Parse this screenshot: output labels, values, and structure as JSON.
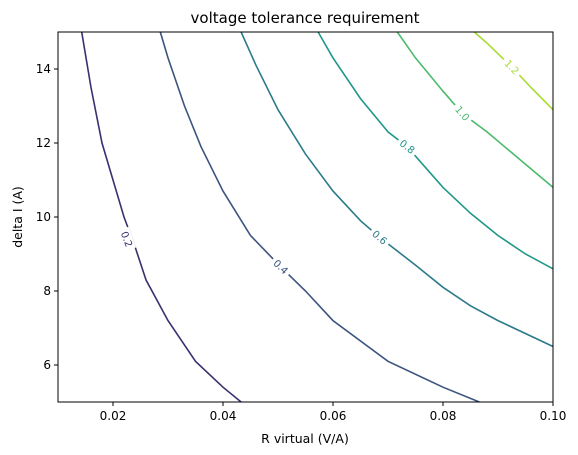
{
  "chart_data": {
    "type": "line",
    "title": "voltage tolerance requirement",
    "xlabel": "R virtual (V/A)",
    "ylabel": "delta I (A)",
    "xlim": [
      0.01,
      0.1
    ],
    "ylim": [
      5,
      15
    ],
    "xticks": [
      0.02,
      0.04,
      0.06,
      0.08,
      0.1
    ],
    "xtick_labels": [
      "0.02",
      "0.04",
      "0.06",
      "0.08",
      "0.10"
    ],
    "yticks": [
      6,
      8,
      10,
      12,
      14
    ],
    "ytick_labels": [
      "6",
      "8",
      "10",
      "12",
      "14"
    ],
    "grid": false,
    "series": [
      {
        "name": "0.2",
        "color": "#3b2f6f",
        "label": "0.2",
        "label_at": [
          0.0225,
          9.4
        ],
        "x": [
          0.0143,
          0.016,
          0.018,
          0.02,
          0.022,
          0.024,
          0.026,
          0.03,
          0.035,
          0.04,
          0.0433
        ],
        "y": [
          15.0,
          13.5,
          12.0,
          11.0,
          10.0,
          9.2,
          8.3,
          7.2,
          6.1,
          5.4,
          5.0
        ]
      },
      {
        "name": "0.4",
        "color": "#3c547f",
        "label": "0.4",
        "label_at": [
          0.0505,
          8.65
        ],
        "x": [
          0.0286,
          0.03,
          0.033,
          0.036,
          0.04,
          0.045,
          0.0505,
          0.055,
          0.06,
          0.07,
          0.08,
          0.0866
        ],
        "y": [
          15.0,
          14.3,
          13.0,
          11.9,
          10.7,
          9.5,
          8.65,
          8.0,
          7.2,
          6.1,
          5.4,
          5.0
        ]
      },
      {
        "name": "0.6",
        "color": "#2c7b8a",
        "label": "0.6",
        "label_at": [
          0.0685,
          9.45
        ],
        "x": [
          0.0433,
          0.046,
          0.05,
          0.055,
          0.06,
          0.065,
          0.0685,
          0.075,
          0.08,
          0.085,
          0.09,
          0.1
        ],
        "y": [
          15.0,
          14.1,
          12.9,
          11.7,
          10.7,
          9.9,
          9.45,
          8.7,
          8.1,
          7.6,
          7.2,
          6.5
        ]
      },
      {
        "name": "0.8",
        "color": "#209788",
        "label": "0.8",
        "label_at": [
          0.0735,
          11.9
        ],
        "x": [
          0.0573,
          0.06,
          0.065,
          0.07,
          0.0735,
          0.08,
          0.085,
          0.09,
          0.095,
          0.1
        ],
        "y": [
          15.0,
          14.3,
          13.2,
          12.3,
          11.9,
          10.8,
          10.1,
          9.5,
          9.0,
          8.6
        ]
      },
      {
        "name": "1.0",
        "color": "#4cbb6d",
        "label": "1.0",
        "label_at": [
          0.0835,
          12.8
        ],
        "x": [
          0.0717,
          0.075,
          0.08,
          0.0835,
          0.088,
          0.092,
          0.096,
          0.1
        ],
        "y": [
          15.0,
          14.3,
          13.4,
          12.8,
          12.3,
          11.8,
          11.3,
          10.8
        ]
      },
      {
        "name": "1.2",
        "color": "#a8db34",
        "label": "1.2",
        "label_at": [
          0.0925,
          14.05
        ],
        "x": [
          0.0857,
          0.088,
          0.0925,
          0.096,
          0.1
        ],
        "y": [
          15.0,
          14.7,
          14.05,
          13.5,
          12.9
        ]
      }
    ]
  }
}
